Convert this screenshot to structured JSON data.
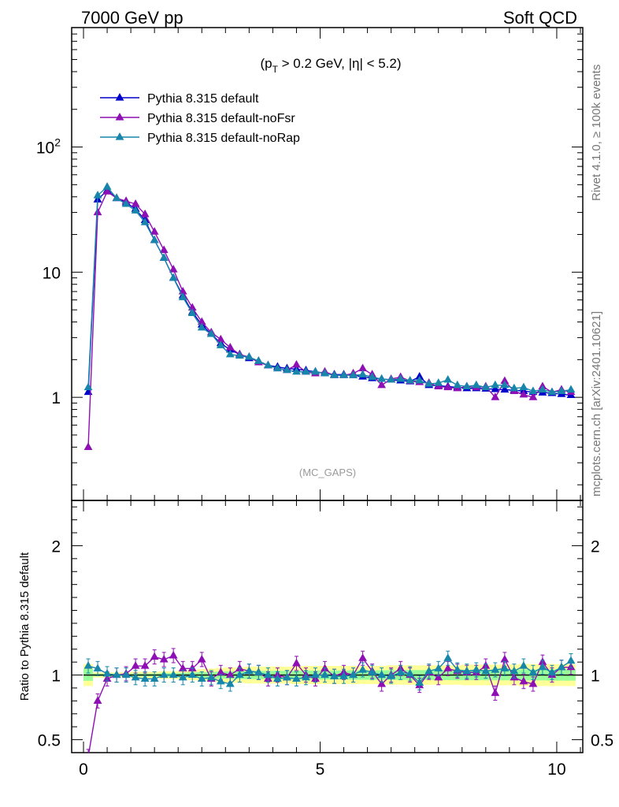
{
  "header": {
    "left": "7000 GeV pp",
    "right": "Soft QCD"
  },
  "side_labels": {
    "rivet": "Rivet 4.1.0, ≥ 100k events",
    "mcplots": "mcplots.cern.ch [arXiv:2401.10621]"
  },
  "chart_data": [
    {
      "type": "line",
      "title": "(p_T > 0.2 GeV, |η| < 5.2)",
      "title_parts": {
        "pre": "(p",
        "sub": "T",
        "post": " > 0.2 GeV, |η| < 5.2)"
      },
      "watermark": "(MC_GAPS)",
      "xlim": [
        -0.25,
        10.55
      ],
      "ylim": [
        0.15,
        900
      ],
      "yscale": "log",
      "ytick_labels": [
        {
          "value": 1,
          "label": "1"
        },
        {
          "value": 10,
          "label": "10"
        },
        {
          "value": 100,
          "label": "10",
          "sup": "2"
        }
      ],
      "legend_position": "top-left",
      "x": [
        0.1,
        0.3,
        0.5,
        0.7,
        0.9,
        1.1,
        1.3,
        1.5,
        1.7,
        1.9,
        2.1,
        2.3,
        2.5,
        2.7,
        2.9,
        3.1,
        3.3,
        3.5,
        3.7,
        3.9,
        4.1,
        4.3,
        4.5,
        4.7,
        4.9,
        5.1,
        5.3,
        5.5,
        5.7,
        5.9,
        6.1,
        6.3,
        6.5,
        6.7,
        6.9,
        7.1,
        7.3,
        7.5,
        7.7,
        7.9,
        8.1,
        8.3,
        8.5,
        8.7,
        8.9,
        9.1,
        9.3,
        9.5,
        9.7,
        9.9,
        10.1,
        10.3
      ],
      "series": [
        {
          "name": "Pythia 8.315 default",
          "color": "#0000cc",
          "values": [
            1.1,
            38,
            45,
            39,
            36,
            32,
            26,
            18,
            13,
            9,
            6.5,
            4.8,
            3.8,
            3.2,
            2.7,
            2.4,
            2.2,
            2.05,
            1.95,
            1.8,
            1.75,
            1.7,
            1.68,
            1.64,
            1.6,
            1.56,
            1.52,
            1.52,
            1.5,
            1.46,
            1.42,
            1.4,
            1.38,
            1.36,
            1.34,
            1.46,
            1.25,
            1.24,
            1.22,
            1.2,
            1.18,
            1.18,
            1.17,
            1.16,
            1.15,
            1.14,
            1.12,
            1.1,
            1.09,
            1.08,
            1.06,
            1.04
          ]
        },
        {
          "name": "Pythia 8.315 default-noFsr",
          "color": "#8e0fb4",
          "values": [
            0.4,
            30,
            44,
            39,
            37,
            35,
            29,
            21,
            15,
            10.5,
            7,
            5.2,
            4.0,
            3.3,
            2.9,
            2.5,
            2.2,
            2.1,
            1.9,
            1.8,
            1.7,
            1.65,
            1.82,
            1.6,
            1.55,
            1.6,
            1.5,
            1.5,
            1.55,
            1.7,
            1.52,
            1.25,
            1.4,
            1.45,
            1.35,
            1.32,
            1.3,
            1.22,
            1.2,
            1.18,
            1.22,
            1.2,
            1.22,
            1.0,
            1.35,
            1.12,
            1.05,
            1.0,
            1.22,
            1.1,
            1.15,
            1.1
          ]
        },
        {
          "name": "Pythia 8.315 default-noRap",
          "color": "#1786aa",
          "values": [
            1.2,
            41,
            48,
            39,
            35,
            31,
            25,
            18,
            13,
            9,
            6.3,
            4.7,
            3.6,
            3.2,
            2.6,
            2.2,
            2.15,
            2.1,
            1.95,
            1.8,
            1.7,
            1.65,
            1.6,
            1.6,
            1.6,
            1.55,
            1.5,
            1.5,
            1.5,
            1.52,
            1.45,
            1.4,
            1.38,
            1.4,
            1.36,
            1.36,
            1.28,
            1.3,
            1.38,
            1.25,
            1.22,
            1.25,
            1.2,
            1.25,
            1.25,
            1.18,
            1.2,
            1.12,
            1.15,
            1.1,
            1.12,
            1.15
          ]
        }
      ]
    },
    {
      "type": "line",
      "ylabel": "Ratio to Pythia 8.315 default",
      "xlim": [
        -0.25,
        10.55
      ],
      "ylim": [
        0.4,
        2.35
      ],
      "xticks": [
        0,
        5,
        10
      ],
      "yticks": [
        0.5,
        1,
        2
      ],
      "x": [
        0.1,
        0.3,
        0.5,
        0.7,
        0.9,
        1.1,
        1.3,
        1.5,
        1.7,
        1.9,
        2.1,
        2.3,
        2.5,
        2.7,
        2.9,
        3.1,
        3.3,
        3.5,
        3.7,
        3.9,
        4.1,
        4.3,
        4.5,
        4.7,
        4.9,
        5.1,
        5.3,
        5.5,
        5.7,
        5.9,
        6.1,
        6.3,
        6.5,
        6.7,
        6.9,
        7.1,
        7.3,
        7.5,
        7.7,
        7.9,
        8.1,
        8.3,
        8.5,
        8.7,
        8.9,
        9.1,
        9.3,
        9.5,
        9.7,
        9.9,
        10.1,
        10.3
      ],
      "band_outer": {
        "color": "#ffff99",
        "halfwidth": [
          0.085,
          0.02,
          0.02,
          0.02,
          0.02,
          0.025,
          0.025,
          0.025,
          0.03,
          0.03,
          0.035,
          0.04,
          0.045,
          0.05,
          0.055,
          0.06,
          0.06,
          0.065,
          0.065,
          0.065,
          0.065,
          0.065,
          0.07,
          0.07,
          0.07,
          0.07,
          0.07,
          0.07,
          0.07,
          0.07,
          0.07,
          0.07,
          0.075,
          0.075,
          0.075,
          0.075,
          0.075,
          0.075,
          0.075,
          0.075,
          0.08,
          0.08,
          0.08,
          0.08,
          0.08,
          0.08,
          0.085,
          0.085,
          0.085,
          0.085,
          0.085,
          0.085
        ]
      },
      "band_inner": {
        "color": "#99ff99",
        "halfwidth": [
          0.045,
          0.01,
          0.01,
          0.01,
          0.01,
          0.012,
          0.012,
          0.012,
          0.015,
          0.015,
          0.018,
          0.02,
          0.022,
          0.025,
          0.028,
          0.03,
          0.03,
          0.032,
          0.032,
          0.032,
          0.033,
          0.033,
          0.034,
          0.034,
          0.035,
          0.035,
          0.035,
          0.035,
          0.036,
          0.036,
          0.036,
          0.037,
          0.037,
          0.038,
          0.038,
          0.038,
          0.038,
          0.039,
          0.039,
          0.04,
          0.04,
          0.04,
          0.04,
          0.041,
          0.041,
          0.041,
          0.042,
          0.042,
          0.042,
          0.043,
          0.043,
          0.043
        ]
      },
      "series": [
        {
          "name": "Pythia 8.315 default-noFsr",
          "color": "#8e0fb4",
          "values": [
            0.37,
            0.8,
            0.97,
            1.0,
            1.01,
            1.07,
            1.07,
            1.14,
            1.12,
            1.15,
            1.05,
            1.05,
            1.12,
            0.97,
            1.02,
            1.0,
            1.05,
            1.03,
            1.02,
            0.97,
            1.0,
            0.98,
            1.09,
            1.0,
            0.97,
            1.05,
            0.99,
            1.02,
            1.0,
            1.13,
            1.03,
            0.93,
            1.0,
            1.05,
            1.0,
            0.92,
            1.02,
            0.98,
            1.05,
            1.03,
            1.02,
            1.02,
            1.07,
            0.86,
            1.12,
            0.98,
            0.95,
            0.93,
            1.1,
            1.0,
            1.06,
            1.06
          ]
        },
        {
          "name": "Pythia 8.315 default-noRap",
          "color": "#1786aa",
          "values": [
            1.07,
            1.05,
            1.01,
            1.0,
            1.0,
            0.98,
            0.97,
            0.97,
            1.0,
            1.0,
            0.98,
            1.0,
            0.97,
            0.98,
            0.95,
            0.93,
            1.0,
            1.03,
            1.02,
            1.0,
            0.97,
            0.98,
            0.97,
            0.98,
            1.0,
            1.0,
            0.99,
            0.99,
            1.0,
            1.04,
            1.02,
            1.0,
            0.99,
            1.02,
            1.01,
            0.94,
            1.03,
            1.05,
            1.13,
            1.04,
            1.03,
            1.04,
            1.03,
            1.04,
            1.05,
            1.03,
            1.07,
            1.02,
            1.06,
            1.02,
            1.06,
            1.11
          ]
        }
      ]
    }
  ]
}
